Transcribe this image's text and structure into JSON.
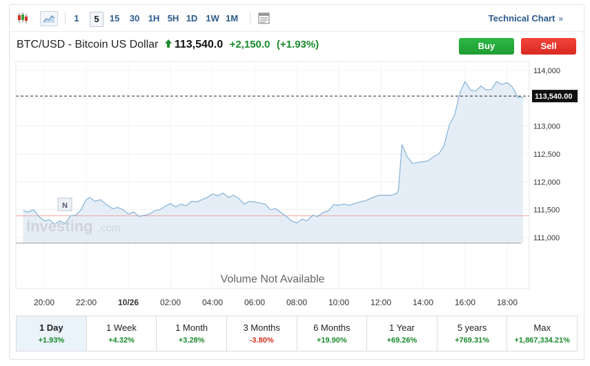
{
  "toolbar": {
    "timeframes": [
      "1",
      "5",
      "15",
      "30",
      "1H",
      "5H",
      "1D",
      "1W",
      "1M"
    ],
    "active_timeframe": "5",
    "technical_chart": "Technical Chart",
    "technical_chart_chevron": "»"
  },
  "instrument": {
    "name": "BTC/USD - Bitcoin US Dollar",
    "price": "113,540.0",
    "change": "+2,150.0",
    "change_pct": "(+1.93%)",
    "direction": "up"
  },
  "buttons": {
    "buy": "Buy",
    "sell": "Sell"
  },
  "colors": {
    "up": "#198a2b",
    "down": "#d4301f",
    "buy": "#1f9c34",
    "sell": "#d92a22",
    "line": "#8db6d9",
    "area": "#e5eef7",
    "link": "#2a5a8c"
  },
  "watermark": {
    "brand": "Investing",
    "suffix": ".com",
    "badge": "N"
  },
  "volume_note": "Volume Not Available",
  "chart_data": {
    "type": "area",
    "x_ticks": [
      "20:00",
      "22:00",
      "10/26",
      "02:00",
      "04:00",
      "06:00",
      "08:00",
      "10:00",
      "12:00",
      "14:00",
      "16:00",
      "18:00"
    ],
    "y_ticks": [
      "114,000",
      "113,500",
      "113,000",
      "112,500",
      "112,000",
      "111,500",
      "111,000"
    ],
    "ylim": [
      110900,
      114150
    ],
    "current_label": "113,540.00",
    "current_value": 113540,
    "reference_value": 111390,
    "series": [
      {
        "x": [
          "19:00",
          "19:15",
          "19:30",
          "19:45",
          "20:00",
          "20:15",
          "20:30",
          "20:45",
          "21:00",
          "21:15",
          "21:30",
          "21:45",
          "22:00",
          "22:10",
          "22:25",
          "22:40",
          "23:00",
          "23:15",
          "23:30",
          "23:45",
          "00:00",
          "00:15",
          "00:30",
          "00:45",
          "01:00",
          "01:15",
          "01:30",
          "01:45",
          "02:00",
          "02:15",
          "02:30",
          "02:45",
          "03:00",
          "03:15",
          "03:30",
          "03:45",
          "04:00",
          "04:15",
          "04:30",
          "04:45",
          "05:00",
          "05:15",
          "05:30",
          "05:45",
          "06:00",
          "06:15",
          "06:30",
          "06:45",
          "07:00",
          "07:15",
          "07:30",
          "07:45",
          "08:00",
          "08:15",
          "08:30",
          "08:45",
          "09:00",
          "09:15",
          "09:30",
          "09:45",
          "10:00",
          "10:15",
          "10:30",
          "10:45",
          "11:00",
          "11:15",
          "11:30",
          "11:45",
          "12:00",
          "12:15",
          "12:30",
          "12:45",
          "12:50",
          "13:00",
          "13:15",
          "13:30",
          "13:45",
          "14:00",
          "14:15",
          "14:30",
          "14:45",
          "15:00",
          "15:15",
          "15:30",
          "15:45",
          "16:00",
          "16:15",
          "16:30",
          "16:45",
          "17:00",
          "17:15",
          "17:30",
          "17:45",
          "18:00",
          "18:15",
          "18:30",
          "18:45"
        ],
        "values": [
          111480,
          111460,
          111500,
          111380,
          111300,
          111320,
          111240,
          111300,
          111250,
          111390,
          111400,
          111500,
          111680,
          111720,
          111650,
          111680,
          111580,
          111520,
          111540,
          111500,
          111420,
          111460,
          111380,
          111400,
          111420,
          111480,
          111500,
          111560,
          111610,
          111550,
          111600,
          111570,
          111650,
          111640,
          111680,
          111720,
          111780,
          111750,
          111800,
          111720,
          111760,
          111700,
          111600,
          111650,
          111640,
          111620,
          111600,
          111500,
          111520,
          111450,
          111380,
          111300,
          111260,
          111330,
          111300,
          111400,
          111380,
          111450,
          111480,
          111590,
          111580,
          111600,
          111580,
          111610,
          111640,
          111660,
          111700,
          111740,
          111760,
          111760,
          111760,
          111790,
          111850,
          112670,
          112450,
          112330,
          112350,
          112360,
          112380,
          112450,
          112500,
          112650,
          113020,
          113200,
          113600,
          113800,
          113650,
          113630,
          113720,
          113650,
          113660,
          113800,
          113750,
          113780,
          113700,
          113520,
          113520
        ]
      }
    ]
  },
  "periods": [
    {
      "label": "1 Day",
      "change": "+1.93%",
      "dir": "pos",
      "active": true
    },
    {
      "label": "1 Week",
      "change": "+4.32%",
      "dir": "pos"
    },
    {
      "label": "1 Month",
      "change": "+3.28%",
      "dir": "pos"
    },
    {
      "label": "3 Months",
      "change": "-3.80%",
      "dir": "neg"
    },
    {
      "label": "6 Months",
      "change": "+19.90%",
      "dir": "pos"
    },
    {
      "label": "1 Year",
      "change": "+69.26%",
      "dir": "pos"
    },
    {
      "label": "5 years",
      "change": "+769.31%",
      "dir": "pos"
    },
    {
      "label": "Max",
      "change": "+1,867,334.21%",
      "dir": "pos"
    }
  ]
}
